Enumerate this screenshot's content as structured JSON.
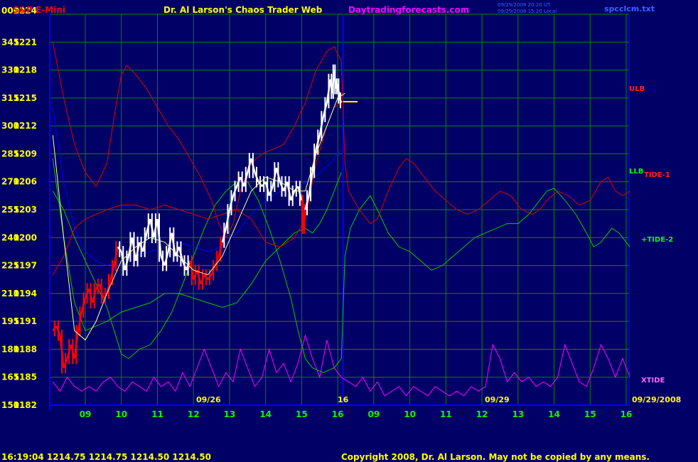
{
  "header": {
    "symbol": "S&P E-Mini",
    "title": "Dr. Al Larson's Chaos Trader Web",
    "site": "Daytradingforecasts.com",
    "stamp_line1": "09/29/2008 20:20 UT",
    "stamp_line2": "09/29/2008 15:20 Local",
    "file": "spcclcm.txt"
  },
  "footer": {
    "quote": "16:19:04  1214.75  1214.75  1214.50  1214.50",
    "copyright": "Copyright 2008, Dr. Al Larson. May not be copied by any means."
  },
  "colors": {
    "background": "#000066",
    "grid": "#008800",
    "axis": "#0000ff",
    "text_yellow": "#ffff00",
    "text_green": "#00ff00",
    "text_magenta": "#ff00ff",
    "price_up": "#ffffff",
    "price_down": "#ff0000",
    "ulb": "#dd0000",
    "llb": "#00cc00",
    "xtide": "#ff00ff",
    "curve_blue": "#0000ff",
    "curve_yellow": "#ffff99"
  },
  "chart_data": {
    "type": "line",
    "y_axis": {
      "range": [
        1182,
        1224
      ],
      "price_ticks": [
        "1224",
        "1221",
        "1218",
        "1215",
        "1212",
        "1209",
        "1206",
        "1203",
        "1200",
        "1197",
        "1194",
        "1191",
        "1188",
        "1185",
        "1182"
      ],
      "index_ticks": [
        "000",
        "345",
        "330",
        "315",
        "300",
        "285",
        "270",
        "255",
        "240",
        "225",
        "210",
        "195",
        "180",
        "165",
        "150"
      ]
    },
    "x_axis": {
      "tick_labels": [
        "09",
        "10",
        "11",
        "12",
        "13",
        "14",
        "15",
        "16",
        "09",
        "10",
        "11",
        "12",
        "13",
        "14",
        "15",
        "16"
      ],
      "date_labels": [
        "09/26",
        "09/29",
        "09/29/2008"
      ],
      "now_marker_label": "16"
    },
    "series_labels": {
      "ulb": "ULB",
      "llb": "LLB",
      "tide1": "TIDE-1",
      "tide2": "+TIDE-2",
      "xtide": "XTIDE"
    },
    "x_domain": [
      8.1,
      24.1
    ],
    "price": [
      [
        8.1,
        1190.0
      ],
      [
        8.2,
        1190.5
      ],
      [
        8.3,
        1189.5
      ],
      [
        8.4,
        1186.0
      ],
      [
        8.5,
        1187.0
      ],
      [
        8.6,
        1188.5
      ],
      [
        8.7,
        1187.0
      ],
      [
        8.8,
        1190.0
      ],
      [
        8.9,
        1192.0
      ],
      [
        9.0,
        1193.5
      ],
      [
        9.1,
        1194.5
      ],
      [
        9.2,
        1193.0
      ],
      [
        9.3,
        1194.5
      ],
      [
        9.4,
        1195.0
      ],
      [
        9.5,
        1193.5
      ],
      [
        9.6,
        1194.0
      ],
      [
        9.7,
        1195.5
      ],
      [
        9.8,
        1197.0
      ],
      [
        9.9,
        1199.0
      ],
      [
        10.0,
        1198.5
      ],
      [
        10.1,
        1196.5
      ],
      [
        10.2,
        1198.0
      ],
      [
        10.3,
        1200.0
      ],
      [
        10.4,
        1197.5
      ],
      [
        10.5,
        1199.5
      ],
      [
        10.6,
        1198.5
      ],
      [
        10.7,
        1200.5
      ],
      [
        10.8,
        1202.0
      ],
      [
        10.9,
        1200.0
      ],
      [
        11.0,
        1202.0
      ],
      [
        11.1,
        1198.0
      ],
      [
        11.2,
        1197.0
      ],
      [
        11.3,
        1198.5
      ],
      [
        11.4,
        1200.5
      ],
      [
        11.5,
        1198.0
      ],
      [
        11.6,
        1199.0
      ],
      [
        11.7,
        1197.5
      ],
      [
        11.8,
        1196.5
      ],
      [
        11.9,
        1197.5
      ],
      [
        12.0,
        1195.5
      ],
      [
        12.1,
        1196.5
      ],
      [
        12.2,
        1195.0
      ],
      [
        12.3,
        1196.0
      ],
      [
        12.4,
        1195.5
      ],
      [
        12.5,
        1196.0
      ],
      [
        12.6,
        1197.0
      ],
      [
        12.7,
        1198.0
      ],
      [
        12.8,
        1199.5
      ],
      [
        12.9,
        1201.0
      ],
      [
        13.0,
        1203.0
      ],
      [
        13.1,
        1204.5
      ],
      [
        13.2,
        1205.5
      ],
      [
        13.3,
        1206.5
      ],
      [
        13.4,
        1205.5
      ],
      [
        13.5,
        1207.0
      ],
      [
        13.6,
        1208.5
      ],
      [
        13.7,
        1207.0
      ],
      [
        13.8,
        1206.0
      ],
      [
        13.9,
        1205.5
      ],
      [
        14.0,
        1206.0
      ],
      [
        14.1,
        1204.5
      ],
      [
        14.2,
        1205.5
      ],
      [
        14.3,
        1207.5
      ],
      [
        14.4,
        1206.0
      ],
      [
        14.5,
        1205.0
      ],
      [
        14.6,
        1206.0
      ],
      [
        14.7,
        1204.0
      ],
      [
        14.8,
        1205.0
      ],
      [
        14.9,
        1205.5
      ],
      [
        15.0,
        1204.0
      ],
      [
        15.05,
        1201.0
      ],
      [
        15.1,
        1203.0
      ],
      [
        15.2,
        1204.5
      ],
      [
        15.3,
        1207.0
      ],
      [
        15.4,
        1209.5
      ],
      [
        15.5,
        1211.0
      ],
      [
        15.6,
        1213.0
      ],
      [
        15.7,
        1214.5
      ],
      [
        15.8,
        1217.0
      ],
      [
        15.85,
        1215.5
      ],
      [
        15.9,
        1218.0
      ],
      [
        15.95,
        1216.0
      ],
      [
        16.0,
        1216.5
      ],
      [
        16.05,
        1215.0
      ],
      [
        16.1,
        1214.5
      ]
    ],
    "close_marker": [
      [
        16.15,
        1214.6
      ],
      [
        16.55,
        1214.6
      ]
    ],
    "ulb": [
      [
        8.1,
        1221.0
      ],
      [
        8.4,
        1215.0
      ],
      [
        8.7,
        1210.0
      ],
      [
        9.0,
        1207.0
      ],
      [
        9.3,
        1205.5
      ],
      [
        9.6,
        1208.0
      ],
      [
        9.8,
        1213.0
      ],
      [
        10.0,
        1217.5
      ],
      [
        10.15,
        1218.5
      ],
      [
        10.4,
        1217.5
      ],
      [
        10.7,
        1216.0
      ],
      [
        11.0,
        1214.0
      ],
      [
        11.3,
        1212.0
      ],
      [
        11.6,
        1210.5
      ],
      [
        11.9,
        1208.5
      ],
      [
        12.2,
        1206.5
      ],
      [
        12.5,
        1204.0
      ],
      [
        12.7,
        1201.5
      ],
      [
        12.9,
        1200.0
      ],
      [
        13.1,
        1201.5
      ],
      [
        13.3,
        1205.0
      ],
      [
        13.6,
        1208.0
      ],
      [
        13.9,
        1209.0
      ],
      [
        14.2,
        1209.5
      ],
      [
        14.5,
        1210.0
      ],
      [
        14.8,
        1212.0
      ],
      [
        15.1,
        1214.5
      ],
      [
        15.4,
        1218.0
      ],
      [
        15.7,
        1220.0
      ],
      [
        15.9,
        1220.5
      ],
      [
        16.1,
        1219.0
      ],
      [
        16.2,
        1208.0
      ],
      [
        16.3,
        1205.0
      ],
      [
        16.6,
        1203.0
      ],
      [
        16.9,
        1201.5
      ],
      [
        17.1,
        1202.0
      ],
      [
        17.4,
        1205.0
      ],
      [
        17.7,
        1207.5
      ],
      [
        17.9,
        1208.5
      ],
      [
        18.1,
        1208.0
      ],
      [
        18.4,
        1206.5
      ],
      [
        18.7,
        1205.0
      ],
      [
        19.0,
        1204.0
      ],
      [
        19.3,
        1203.0
      ],
      [
        19.6,
        1202.5
      ],
      [
        19.9,
        1203.0
      ],
      [
        20.2,
        1204.0
      ],
      [
        20.5,
        1205.0
      ],
      [
        20.8,
        1204.5
      ],
      [
        21.1,
        1203.0
      ],
      [
        21.4,
        1202.5
      ],
      [
        21.6,
        1203.0
      ],
      [
        21.8,
        1204.0
      ],
      [
        22.1,
        1205.0
      ],
      [
        22.4,
        1204.5
      ],
      [
        22.7,
        1203.5
      ],
      [
        23.0,
        1204.0
      ],
      [
        23.3,
        1206.0
      ],
      [
        23.5,
        1206.5
      ],
      [
        23.7,
        1205.0
      ],
      [
        23.9,
        1204.5
      ],
      [
        24.1,
        1205.0
      ]
    ],
    "red_inner": [
      [
        8.1,
        1196.0
      ],
      [
        8.4,
        1198.0
      ],
      [
        8.7,
        1201.0
      ],
      [
        9.0,
        1202.0
      ],
      [
        9.3,
        1202.5
      ],
      [
        9.6,
        1203.0
      ],
      [
        10.0,
        1203.5
      ],
      [
        10.4,
        1203.5
      ],
      [
        10.8,
        1203.0
      ],
      [
        11.2,
        1203.5
      ],
      [
        11.6,
        1203.0
      ],
      [
        12.0,
        1202.5
      ],
      [
        12.4,
        1202.0
      ],
      [
        12.8,
        1202.5
      ],
      [
        13.2,
        1203.0
      ],
      [
        13.6,
        1202.0
      ],
      [
        14.0,
        1199.5
      ],
      [
        14.4,
        1199.0
      ],
      [
        14.8,
        1200.0
      ],
      [
        15.1,
        1202.0
      ],
      [
        15.4,
        1208.0
      ],
      [
        15.7,
        1212.0
      ],
      [
        15.9,
        1214.0
      ],
      [
        16.1,
        1214.5
      ]
    ],
    "llb": [
      [
        8.1,
        1205.0
      ],
      [
        8.4,
        1203.0
      ],
      [
        8.7,
        1200.0
      ],
      [
        9.0,
        1197.5
      ],
      [
        9.3,
        1195.0
      ],
      [
        9.6,
        1192.5
      ],
      [
        9.8,
        1190.0
      ],
      [
        10.0,
        1187.5
      ],
      [
        10.2,
        1187.0
      ],
      [
        10.5,
        1188.0
      ],
      [
        10.8,
        1188.5
      ],
      [
        11.1,
        1190.0
      ],
      [
        11.4,
        1192.0
      ],
      [
        11.7,
        1195.0
      ],
      [
        12.0,
        1198.0
      ],
      [
        12.3,
        1201.0
      ],
      [
        12.6,
        1203.5
      ],
      [
        12.9,
        1205.0
      ],
      [
        13.2,
        1206.0
      ],
      [
        13.5,
        1206.0
      ],
      [
        13.8,
        1204.0
      ],
      [
        14.1,
        1201.0
      ],
      [
        14.4,
        1197.5
      ],
      [
        14.7,
        1193.5
      ],
      [
        14.9,
        1190.0
      ],
      [
        15.1,
        1187.0
      ],
      [
        15.3,
        1186.0
      ],
      [
        15.6,
        1185.5
      ],
      [
        15.9,
        1186.0
      ],
      [
        16.1,
        1187.0
      ],
      [
        16.2,
        1198.0
      ],
      [
        16.35,
        1201.0
      ],
      [
        16.6,
        1203.0
      ],
      [
        16.9,
        1204.5
      ],
      [
        17.1,
        1203.0
      ],
      [
        17.4,
        1200.5
      ],
      [
        17.7,
        1199.0
      ],
      [
        18.0,
        1198.5
      ],
      [
        18.3,
        1197.5
      ],
      [
        18.6,
        1196.5
      ],
      [
        18.9,
        1197.0
      ],
      [
        19.2,
        1198.0
      ],
      [
        19.5,
        1199.0
      ],
      [
        19.8,
        1200.0
      ],
      [
        20.1,
        1200.5
      ],
      [
        20.4,
        1201.0
      ],
      [
        20.7,
        1201.5
      ],
      [
        21.0,
        1201.5
      ],
      [
        21.3,
        1202.5
      ],
      [
        21.6,
        1204.0
      ],
      [
        21.8,
        1205.0
      ],
      [
        22.0,
        1205.3
      ],
      [
        22.3,
        1204.0
      ],
      [
        22.6,
        1202.5
      ],
      [
        22.9,
        1200.5
      ],
      [
        23.1,
        1199.0
      ],
      [
        23.3,
        1199.5
      ],
      [
        23.6,
        1201.0
      ],
      [
        23.8,
        1200.5
      ],
      [
        24.1,
        1199.0
      ]
    ],
    "green_lower": [
      [
        8.1,
        1208.5
      ],
      [
        8.4,
        1200.0
      ],
      [
        8.7,
        1193.0
      ],
      [
        9.0,
        1190.0
      ],
      [
        9.3,
        1190.5
      ],
      [
        9.6,
        1191.0
      ],
      [
        10.0,
        1192.0
      ],
      [
        10.4,
        1192.5
      ],
      [
        10.8,
        1193.0
      ],
      [
        11.2,
        1194.0
      ],
      [
        11.6,
        1194.0
      ],
      [
        12.0,
        1193.5
      ],
      [
        12.4,
        1193.0
      ],
      [
        12.8,
        1192.5
      ],
      [
        13.2,
        1193.0
      ],
      [
        13.6,
        1195.0
      ],
      [
        14.0,
        1197.5
      ],
      [
        14.4,
        1199.0
      ],
      [
        14.8,
        1200.5
      ],
      [
        15.1,
        1201.0
      ],
      [
        15.3,
        1200.5
      ],
      [
        15.5,
        1201.5
      ],
      [
        15.7,
        1203.0
      ],
      [
        15.9,
        1205.0
      ],
      [
        16.1,
        1207.0
      ]
    ],
    "blue": [
      [
        8.1,
        1214.0
      ],
      [
        8.4,
        1206.0
      ],
      [
        8.7,
        1201.0
      ],
      [
        9.0,
        1198.5
      ],
      [
        9.3,
        1197.5
      ],
      [
        9.6,
        1197.0
      ],
      [
        10.0,
        1197.5
      ],
      [
        10.4,
        1198.0
      ],
      [
        10.8,
        1198.5
      ],
      [
        11.2,
        1199.0
      ],
      [
        11.6,
        1199.5
      ],
      [
        12.0,
        1199.0
      ],
      [
        12.4,
        1198.5
      ],
      [
        12.8,
        1199.0
      ],
      [
        13.2,
        1200.5
      ],
      [
        13.6,
        1202.5
      ],
      [
        14.0,
        1204.0
      ],
      [
        14.4,
        1205.0
      ],
      [
        14.8,
        1205.5
      ],
      [
        15.2,
        1206.0
      ],
      [
        15.5,
        1207.0
      ],
      [
        15.8,
        1208.0
      ],
      [
        16.1,
        1209.5
      ],
      [
        16.25,
        1210.0
      ]
    ],
    "yellow_curve": [
      [
        8.1,
        1211.0
      ],
      [
        8.4,
        1200.0
      ],
      [
        8.7,
        1190.0
      ],
      [
        9.0,
        1189.0
      ],
      [
        9.3,
        1191.0
      ],
      [
        9.6,
        1194.0
      ],
      [
        10.0,
        1197.5
      ],
      [
        10.4,
        1199.0
      ],
      [
        10.8,
        1200.0
      ],
      [
        11.2,
        1199.5
      ],
      [
        11.6,
        1198.0
      ],
      [
        12.0,
        1196.5
      ],
      [
        12.4,
        1196.0
      ],
      [
        12.8,
        1198.0
      ],
      [
        13.2,
        1201.5
      ],
      [
        13.6,
        1205.0
      ],
      [
        14.0,
        1206.5
      ],
      [
        14.4,
        1206.0
      ],
      [
        14.8,
        1205.0
      ],
      [
        15.1,
        1205.0
      ],
      [
        15.4,
        1209.0
      ],
      [
        15.7,
        1212.0
      ],
      [
        16.0,
        1215.0
      ],
      [
        16.2,
        1215.5
      ]
    ],
    "xtide": [
      [
        8.1,
        1184.5
      ],
      [
        8.3,
        1183.5
      ],
      [
        8.5,
        1185.0
      ],
      [
        8.7,
        1184.0
      ],
      [
        8.9,
        1183.5
      ],
      [
        9.1,
        1184.0
      ],
      [
        9.3,
        1183.5
      ],
      [
        9.5,
        1184.5
      ],
      [
        9.7,
        1185.0
      ],
      [
        9.9,
        1184.0
      ],
      [
        10.1,
        1183.5
      ],
      [
        10.3,
        1184.5
      ],
      [
        10.5,
        1184.0
      ],
      [
        10.7,
        1183.5
      ],
      [
        10.9,
        1185.0
      ],
      [
        11.1,
        1184.0
      ],
      [
        11.3,
        1184.5
      ],
      [
        11.5,
        1183.5
      ],
      [
        11.7,
        1185.5
      ],
      [
        11.9,
        1184.0
      ],
      [
        12.1,
        1186.0
      ],
      [
        12.3,
        1188.0
      ],
      [
        12.5,
        1186.0
      ],
      [
        12.7,
        1184.0
      ],
      [
        12.9,
        1185.5
      ],
      [
        13.1,
        1184.5
      ],
      [
        13.3,
        1188.0
      ],
      [
        13.5,
        1186.0
      ],
      [
        13.7,
        1184.0
      ],
      [
        13.9,
        1185.0
      ],
      [
        14.1,
        1188.0
      ],
      [
        14.3,
        1185.5
      ],
      [
        14.5,
        1186.5
      ],
      [
        14.7,
        1184.5
      ],
      [
        14.9,
        1186.5
      ],
      [
        15.1,
        1189.5
      ],
      [
        15.3,
        1187.0
      ],
      [
        15.5,
        1185.0
      ],
      [
        15.7,
        1189.0
      ],
      [
        15.9,
        1186.0
      ],
      [
        16.1,
        1185.0
      ],
      [
        16.3,
        1184.5
      ],
      [
        16.5,
        1184.0
      ],
      [
        16.7,
        1185.0
      ],
      [
        16.9,
        1183.5
      ],
      [
        17.1,
        1184.5
      ],
      [
        17.3,
        1183.0
      ],
      [
        17.5,
        1183.5
      ],
      [
        17.7,
        1184.0
      ],
      [
        17.9,
        1183.0
      ],
      [
        18.1,
        1184.0
      ],
      [
        18.3,
        1183.5
      ],
      [
        18.5,
        1183.0
      ],
      [
        18.7,
        1184.0
      ],
      [
        18.9,
        1183.5
      ],
      [
        19.1,
        1183.0
      ],
      [
        19.3,
        1183.5
      ],
      [
        19.5,
        1183.0
      ],
      [
        19.7,
        1184.0
      ],
      [
        19.9,
        1183.5
      ],
      [
        20.1,
        1184.0
      ],
      [
        20.3,
        1188.5
      ],
      [
        20.5,
        1187.0
      ],
      [
        20.7,
        1184.5
      ],
      [
        20.9,
        1185.5
      ],
      [
        21.1,
        1184.5
      ],
      [
        21.3,
        1185.0
      ],
      [
        21.5,
        1184.0
      ],
      [
        21.7,
        1184.5
      ],
      [
        21.9,
        1184.0
      ],
      [
        22.1,
        1185.0
      ],
      [
        22.3,
        1188.5
      ],
      [
        22.5,
        1186.5
      ],
      [
        22.7,
        1184.5
      ],
      [
        22.9,
        1184.0
      ],
      [
        23.1,
        1186.0
      ],
      [
        23.3,
        1188.5
      ],
      [
        23.5,
        1187.0
      ],
      [
        23.7,
        1185.0
      ],
      [
        23.9,
        1187.0
      ],
      [
        24.1,
        1185.0
      ]
    ]
  }
}
